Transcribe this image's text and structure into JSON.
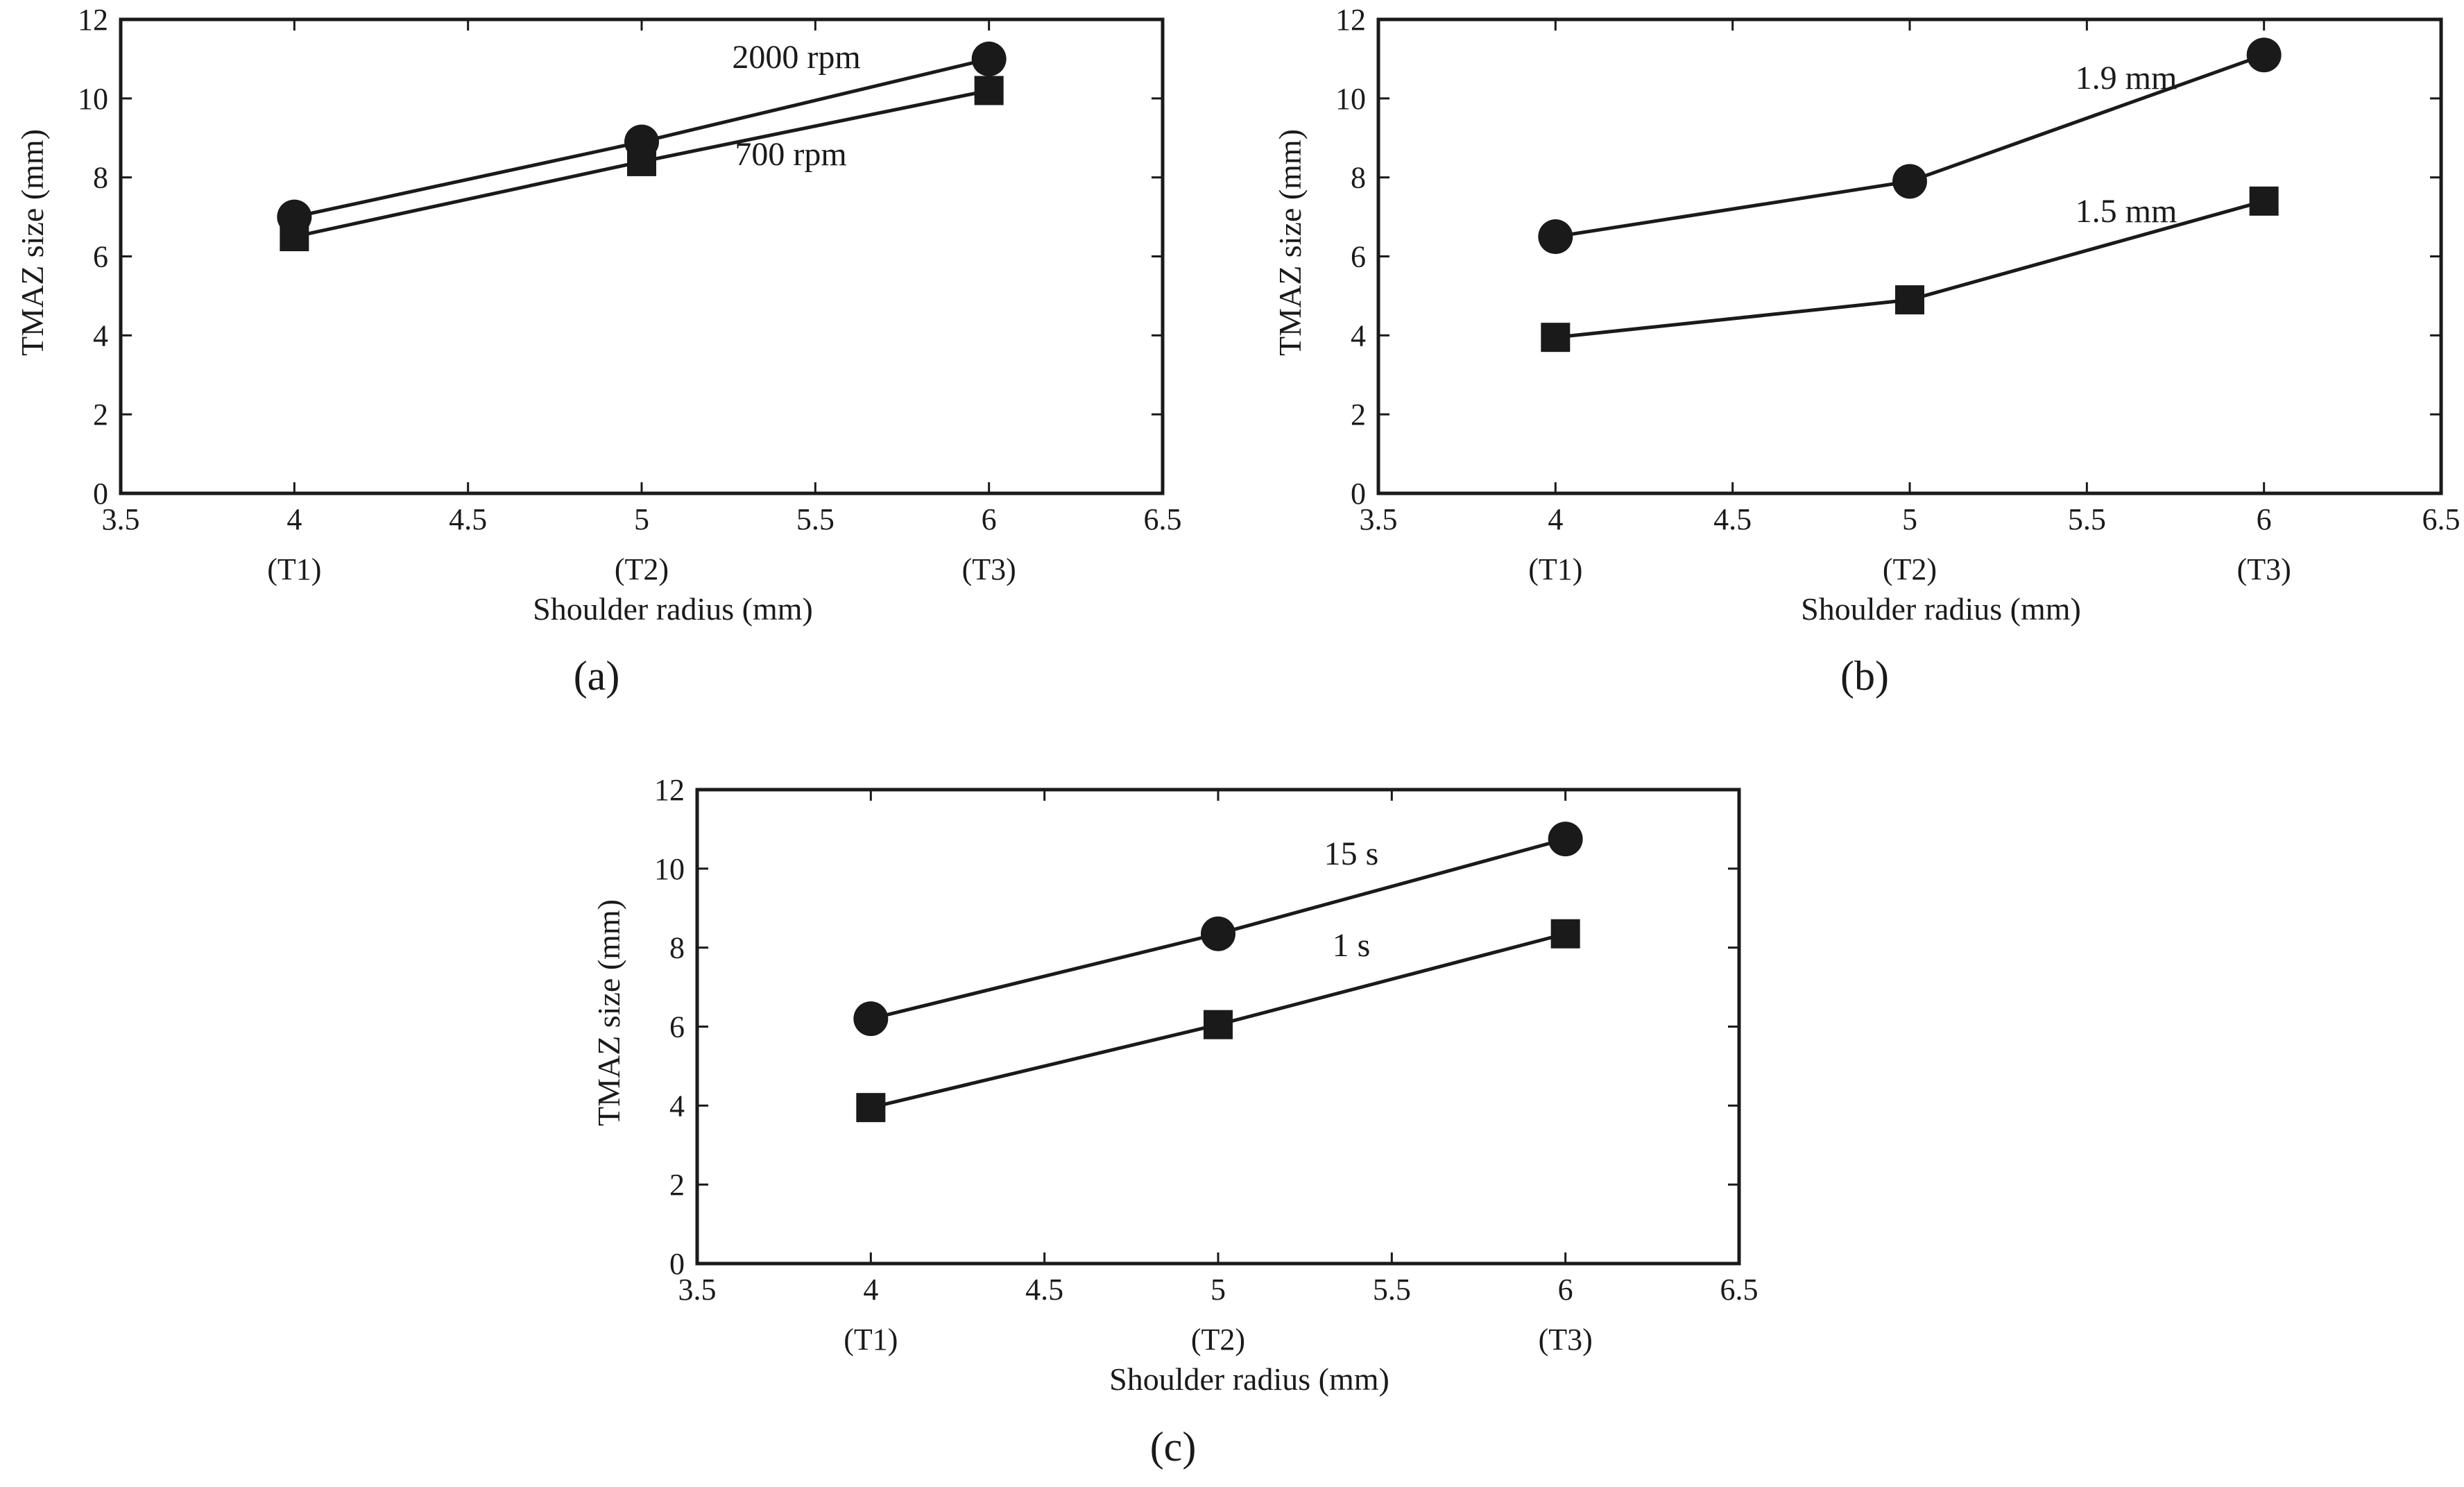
{
  "chart_data": [
    {
      "type": "line",
      "panel": "(a)",
      "xlabel": "Shoulder radius (mm)",
      "ylabel": "TMAZ size (mm)",
      "xlim": [
        3.5,
        6.5
      ],
      "ylim": [
        0,
        12
      ],
      "xticks": [
        "3.5",
        "4",
        "4.5",
        "5",
        "5.5",
        "6",
        "6.5"
      ],
      "yticks": [
        "0",
        "2",
        "4",
        "6",
        "8",
        "10",
        "12"
      ],
      "tool_labels": [
        "(T1)",
        "(T2)",
        "(T3)"
      ],
      "x": [
        4,
        5,
        6
      ],
      "series": [
        {
          "name": "2000 rpm",
          "marker": "circle",
          "values": [
            7.0,
            8.9,
            11.0
          ]
        },
        {
          "name": "700 rpm",
          "marker": "square",
          "values": [
            6.5,
            8.4,
            10.2
          ]
        }
      ]
    },
    {
      "type": "line",
      "panel": "(b)",
      "xlabel": "Shoulder radius (mm)",
      "ylabel": "TMAZ size (mm)",
      "xlim": [
        3.5,
        6.5
      ],
      "ylim": [
        0,
        12
      ],
      "xticks": [
        "3.5",
        "4",
        "4.5",
        "5",
        "5.5",
        "6",
        "6.5"
      ],
      "yticks": [
        "0",
        "2",
        "4",
        "6",
        "8",
        "10",
        "12"
      ],
      "tool_labels": [
        "(T1)",
        "(T2)",
        "(T3)"
      ],
      "x": [
        4,
        5,
        6
      ],
      "series": [
        {
          "name": "1.9 mm",
          "marker": "circle",
          "values": [
            6.5,
            7.9,
            11.1
          ]
        },
        {
          "name": "1.5 mm",
          "marker": "square",
          "values": [
            3.95,
            4.9,
            7.4
          ]
        }
      ]
    },
    {
      "type": "line",
      "panel": "(c)",
      "xlabel": "Shoulder radius (mm)",
      "ylabel": "TMAZ size (mm)",
      "xlim": [
        3.5,
        6.5
      ],
      "ylim": [
        0,
        12
      ],
      "xticks": [
        "3.5",
        "4",
        "4.5",
        "5",
        "5.5",
        "6",
        "6.5"
      ],
      "yticks": [
        "0",
        "2",
        "4",
        "6",
        "8",
        "10",
        "12"
      ],
      "tool_labels": [
        "(T1)",
        "(T2)",
        "(T3)"
      ],
      "x": [
        4,
        5,
        6
      ],
      "series": [
        {
          "name": "15 s",
          "marker": "circle",
          "values": [
            6.2,
            8.35,
            10.75
          ]
        },
        {
          "name": "1 s",
          "marker": "square",
          "values": [
            3.95,
            6.05,
            8.35
          ]
        }
      ]
    }
  ]
}
